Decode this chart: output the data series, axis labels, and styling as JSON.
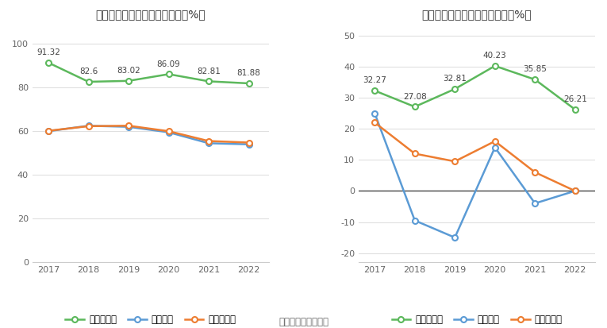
{
  "years": [
    2017,
    2018,
    2019,
    2020,
    2021,
    2022
  ],
  "left_title": "电魂网络历年毛利率变化情况（%）",
  "right_title": "电魂网络历年净利率变化情况（%）",
  "left_company": [
    91.32,
    82.6,
    83.02,
    86.09,
    82.81,
    81.88
  ],
  "left_industry_mean": [
    60.0,
    62.5,
    62.0,
    59.5,
    54.5,
    54.0
  ],
  "left_industry_median": [
    60.2,
    62.3,
    62.5,
    60.0,
    55.5,
    54.8
  ],
  "right_company": [
    32.27,
    27.08,
    32.81,
    40.23,
    35.85,
    26.21
  ],
  "right_industry_mean": [
    25.0,
    -9.5,
    -15.0,
    14.0,
    -4.0,
    0.0
  ],
  "right_industry_median": [
    22.0,
    12.0,
    9.5,
    16.0,
    6.0,
    0.0
  ],
  "left_ylim": [
    0,
    108
  ],
  "left_yticks": [
    0,
    20,
    40,
    60,
    80,
    100
  ],
  "right_ylim": [
    -23,
    53
  ],
  "right_yticks": [
    -20,
    -10,
    0,
    10,
    20,
    30,
    40,
    50
  ],
  "color_company": "#5cb85c",
  "color_mean": "#5b9bd5",
  "color_median": "#ed7d31",
  "legend_company_left": "公司毛利率",
  "legend_company_right": "公司净利率",
  "legend_mean": "行业均值",
  "legend_median": "行业中位数",
  "footer": "数据来源：恒生聚源",
  "bg_color": "#ffffff",
  "grid_color": "#e0e0e0",
  "marker_size": 5,
  "line_width": 1.8,
  "annotation_fontsize": 7.5,
  "tick_fontsize": 8,
  "title_fontsize": 10.5
}
